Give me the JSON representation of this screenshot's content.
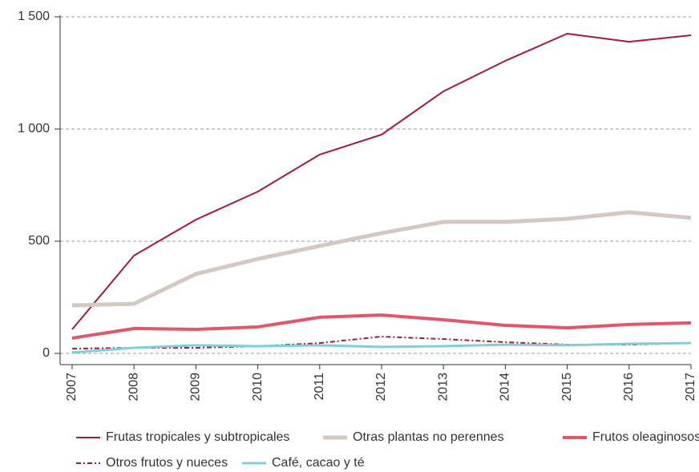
{
  "chart_data": {
    "type": "line",
    "categories": [
      "2007",
      "2008",
      "2009",
      "2010",
      "2011",
      "2012",
      "2013",
      "2014",
      "2015",
      "2016",
      "2017"
    ],
    "ylim": [
      -50,
      1500
    ],
    "yticks": [
      0,
      500,
      {
        "value": 1000,
        "label": "1 000"
      },
      {
        "value": 1500,
        "label": "1 500"
      }
    ],
    "grid": true,
    "legend": "bottom",
    "series": [
      {
        "name": "Frutas tropicales y subtropicales",
        "color": "#a6193a",
        "linewidth": 2,
        "values": [
          107,
          436,
          596,
          721,
          886,
          975,
          1168,
          1304,
          1425,
          1389,
          1418
        ]
      },
      {
        "name": "Otras plantas no perennes",
        "color": "#d5c8c4",
        "linewidth": 5,
        "values": [
          214,
          221,
          354,
          421,
          479,
          536,
          586,
          586,
          600,
          629,
          604
        ]
      },
      {
        "name": "Frutos oleaginosos",
        "color": "#e0566a",
        "linewidth": 4,
        "values": [
          68,
          111,
          107,
          118,
          161,
          171,
          150,
          125,
          114,
          129,
          136
        ]
      },
      {
        "name": "Otros frutos y nueces",
        "color": "#a6193a",
        "linewidth": 2,
        "linestyle": "dashdot",
        "values": [
          21,
          25,
          25,
          32,
          46,
          75,
          64,
          50,
          39,
          39,
          46
        ]
      },
      {
        "name": "Café, cacao y té",
        "color": "#7fcfd6",
        "linewidth": 3,
        "values": [
          4,
          25,
          36,
          32,
          36,
          29,
          32,
          39,
          36,
          43,
          46
        ]
      }
    ]
  }
}
